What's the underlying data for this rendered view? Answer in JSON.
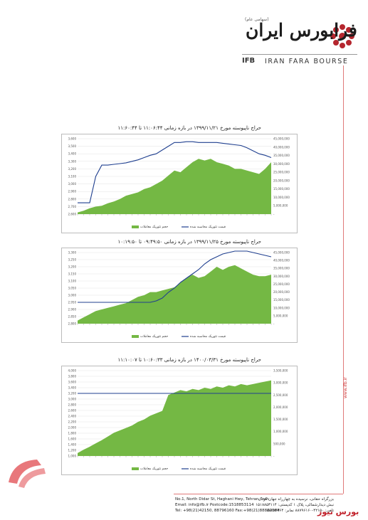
{
  "header": {
    "logo_fa": "فرابورس ایران",
    "logo_tag": "(سهامی عام)",
    "logo_en": "IRAN FARA BOURSE",
    "logo_ifb": "IFB"
  },
  "side_site": "www.ifb.ir",
  "charts": [
    {
      "title": "حراج ناپیوسته مورخ ۱۳۹۹/۱۱/۲۱ در بازه زمانی ۱۱:۰۶:۴۴ تا ۱۱:۶۰:۴۴",
      "y_left_ticks": [
        "3,600",
        "3,500",
        "3,400",
        "3,300",
        "3,200",
        "3,100",
        "3,000",
        "2,900",
        "2,800",
        "2,700",
        "2,600"
      ],
      "y_right_ticks": [
        "45,000,000",
        "40,000,000",
        "35,000,000",
        "30,000,000",
        "25,000,000",
        "20,000,000",
        "15,000,000",
        "10,000,000",
        "5,000,000",
        "-"
      ],
      "legend_area": "حجم تئوریک معاملات",
      "legend_line": "قیمت تئوریک محاسبه شده"
    },
    {
      "title": "حراج ناپیوسته مورخ ۱۳۹۹/۱۱/۲۵ در بازه زمانی ۰۹:۴۹:۵۰ تا ۱۰:۱۹:۵۰",
      "y_left_ticks": [
        "3,300",
        "3,250",
        "3,200",
        "3,150",
        "3,100",
        "3,050",
        "3,000",
        "2,950",
        "2,900",
        "2,850",
        "2,800"
      ],
      "y_right_ticks": [
        "45,000,000",
        "40,000,000",
        "35,000,000",
        "30,000,000",
        "25,000,000",
        "20,000,000",
        "15,000,000",
        "10,000,000",
        "5,000,000",
        "-"
      ],
      "legend_area": "حجم تئوریک معاملات",
      "legend_line": "قیمت تئوریک محاسبه شده"
    },
    {
      "title": "حراج ناپیوسته مورخ ۱۴۰۰/۰۳/۳۱ در بازه زمانی ۱۰:۶۰:۳۳ تا ۱۱:۱۰:۰۷",
      "y_left_ticks": [
        "4,000",
        "3,800",
        "3,600",
        "3,400",
        "3,200",
        "3,000",
        "2,800",
        "2,600",
        "2,400",
        "2,200",
        "2,000",
        "1,800",
        "1,600",
        "1,400",
        "1,200",
        "1,000"
      ],
      "y_right_ticks": [
        "3,500,000",
        "3,000,000",
        "2,500,000",
        "2,000,000",
        "1,500,000",
        "1,000,000",
        "500,000",
        "-"
      ],
      "legend_area": "حجم تئوریک معاملات",
      "legend_line": "قیمت تئوریک محاسبه شده"
    }
  ],
  "chart_data": [
    {
      "type": "area",
      "series": [
        {
          "name": "حجم تئوریک معاملات",
          "values": [
            1.0,
            2.0,
            3.5,
            4.5,
            5.0,
            6.5,
            7.5,
            9.0,
            11,
            12,
            13,
            15,
            16,
            18,
            20,
            23,
            26,
            25,
            28,
            31,
            33,
            32,
            33,
            31,
            30,
            29,
            27,
            27,
            26,
            25,
            24,
            27,
            31
          ]
        },
        {
          "name": "قیمت تئوریک محاسبه شده",
          "values": [
            2750,
            2750,
            2750,
            3100,
            3250,
            3250,
            3260,
            3270,
            3280,
            3300,
            3320,
            3350,
            3380,
            3400,
            3450,
            3500,
            3550,
            3550,
            3560,
            3560,
            3550,
            3550,
            3550,
            3550,
            3540,
            3530,
            3520,
            3510,
            3480,
            3440,
            3400,
            3380,
            3350
          ]
        }
      ],
      "ylim_left": [
        2600,
        3600
      ],
      "ylim_right": [
        0,
        45000000
      ],
      "legend": "bottom"
    },
    {
      "type": "area",
      "series": [
        {
          "name": "حجم تئوریک معاملات",
          "values": [
            2,
            4,
            6,
            8,
            9,
            10,
            11,
            12,
            13,
            15,
            17,
            18,
            20,
            20,
            21,
            22,
            23,
            26,
            29,
            31,
            29,
            30,
            33,
            36,
            34,
            36,
            37,
            35,
            33,
            31,
            30,
            30,
            31
          ]
        },
        {
          "name": "قیمت تئوریک محاسبه شده",
          "values": [
            2950,
            2950,
            2950,
            2950,
            2950,
            2950,
            2950,
            2950,
            2950,
            2950,
            2950,
            2950,
            2950,
            2960,
            2980,
            3020,
            3050,
            3090,
            3120,
            3150,
            3180,
            3220,
            3250,
            3270,
            3290,
            3300,
            3310,
            3310,
            3310,
            3300,
            3290,
            3280,
            3270
          ]
        }
      ],
      "ylim_left": [
        2800,
        3300
      ],
      "ylim_right": [
        0,
        45000000
      ],
      "legend": "bottom"
    },
    {
      "type": "area",
      "series": [
        {
          "name": "حجم تئوریک معاملات",
          "values": [
            120000,
            260000,
            380000,
            520000,
            650000,
            800000,
            950000,
            1050000,
            1150000,
            1250000,
            1400000,
            1500000,
            1650000,
            1750000,
            1850000,
            2500000,
            2600000,
            2700000,
            2650000,
            2750000,
            2700000,
            2800000,
            2750000,
            2850000,
            2800000,
            2900000,
            2850000,
            2950000,
            2900000,
            2950000,
            3000000,
            3050000,
            3100000
          ]
        },
        {
          "name": "قیمت تئوریک محاسبه شده",
          "values": [
            3200,
            3200,
            3200,
            3200,
            3200,
            3200,
            3200,
            3200,
            3200,
            3200,
            3200,
            3200,
            3200,
            3200,
            3200,
            3200,
            3200,
            3200,
            3200,
            3200,
            3200,
            3200,
            3200,
            3200,
            3200,
            3200,
            3200,
            3200,
            3200,
            3200,
            3200,
            3200,
            3200
          ]
        }
      ],
      "ylim_left": [
        1000,
        4000
      ],
      "ylim_right": [
        0,
        3500000
      ],
      "legend": "bottom"
    }
  ],
  "footer": {
    "en_line1": "No.1, North Didar St, Haghani Hwy, Tehran, Iran",
    "en_line2": "Email: info@ifb.ir     Postcode:1518853114",
    "en_line3": "Tel: +98(21)42150, 88796160   Fax:+98(21)88882364",
    "fa_line1": "بزرگراه حقانی، نرسیده به چهارراه جهان کودک",
    "fa_line2": "نبش دیدارشمالی، پلاک ۱  کدپستی: ۱۵۱۸۸۵۳۱۱۴",
    "fa_line3": "تلفن: ۴۲۱۵۰-۸۸۷۹۶۱۶۰ نمابر: ۸۸۸۸۲۳۶۴"
  },
  "brand": {
    "bourse_news": "بورس نیوز",
    "red": "#c0202a",
    "green": "#74b844",
    "navy": "#1f3f8f"
  }
}
